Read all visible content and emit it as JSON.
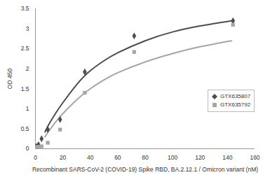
{
  "chart_data": {
    "type": "scatter",
    "x_label": "Recombinant SARS-CoV-2 (COVID-19) Spike RBD, BA.2.12.1 / Omicron variant (nM)",
    "y_label": "OD 450",
    "xlim": [
      0,
      160
    ],
    "xticks": [
      0,
      20,
      40,
      60,
      80,
      100,
      120,
      140,
      160
    ],
    "ylim": [
      0,
      3.5
    ],
    "yticks": [
      0,
      0.5,
      1,
      1.5,
      2,
      2.5,
      3,
      3.5
    ],
    "grid": false,
    "legend": "right",
    "series": [
      {
        "name": "GTX635807",
        "color": "#4d4d4d",
        "marker": "diamond",
        "x": [
          0.56,
          1.1,
          2.25,
          4.5,
          9,
          18,
          36,
          72,
          144
        ],
        "values": [
          0.05,
          0.05,
          0.1,
          0.25,
          0.48,
          0.73,
          1.92,
          2.82,
          3.2
        ],
        "fit": {
          "x": [
            7,
            10,
            15,
            20,
            30,
            40,
            50,
            60,
            80,
            100,
            120,
            143
          ],
          "values": [
            0.42,
            0.62,
            0.9,
            1.15,
            1.6,
            1.95,
            2.2,
            2.4,
            2.7,
            2.92,
            3.07,
            3.2
          ]
        }
      },
      {
        "name": "GTX635792",
        "color": "#a6a6a6",
        "marker": "square",
        "x": [
          0.56,
          1.1,
          2.25,
          4.5,
          9,
          18,
          36,
          72,
          144
        ],
        "values": [
          0.02,
          0.04,
          0.05,
          0.06,
          0.15,
          0.48,
          1.4,
          2.42,
          3.1
        ],
        "fit": {
          "x": [
            7,
            10,
            15,
            20,
            30,
            40,
            50,
            60,
            80,
            100,
            120,
            143
          ],
          "values": [
            0.3,
            0.45,
            0.68,
            0.88,
            1.22,
            1.5,
            1.72,
            1.9,
            2.17,
            2.38,
            2.55,
            2.7
          ]
        }
      }
    ]
  }
}
